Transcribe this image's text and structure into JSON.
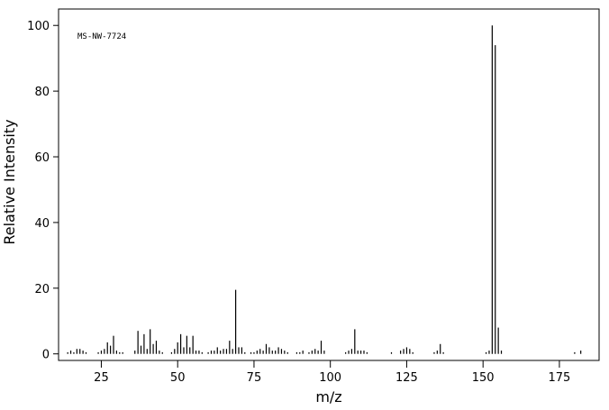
{
  "chart_data": {
    "type": "bar",
    "annotation": "MS-NW-7724",
    "x_label": "m/z",
    "y_label": "Relative Intensity",
    "color": "#000000",
    "x": [
      14,
      15,
      16,
      17,
      18,
      19,
      20,
      24,
      25,
      26,
      27,
      28,
      29,
      30,
      31,
      32,
      36,
      37,
      38,
      39,
      40,
      41,
      42,
      43,
      44,
      45,
      48,
      49,
      50,
      51,
      52,
      53,
      54,
      55,
      56,
      57,
      58,
      60,
      61,
      62,
      63,
      64,
      65,
      66,
      67,
      68,
      69,
      70,
      71,
      72,
      74,
      75,
      76,
      77,
      78,
      79,
      80,
      81,
      82,
      83,
      84,
      85,
      86,
      89,
      90,
      91,
      93,
      94,
      95,
      96,
      97,
      98,
      105,
      106,
      107,
      108,
      109,
      110,
      111,
      112,
      120,
      123,
      124,
      125,
      126,
      127,
      134,
      135,
      136,
      137,
      151,
      152,
      153,
      154,
      155,
      156,
      180,
      182
    ],
    "values": [
      0.5,
      1,
      0.5,
      1.5,
      1.5,
      1,
      0.5,
      0.5,
      1,
      1.5,
      3.5,
      2.5,
      5.5,
      1,
      0.5,
      0.5,
      1,
      7,
      2.5,
      6,
      1.5,
      7.5,
      3,
      4,
      1,
      0.5,
      0.5,
      1.5,
      3.5,
      6,
      2,
      5.5,
      2,
      5.5,
      1,
      1,
      0.5,
      0.5,
      1,
      1,
      2,
      1,
      1.5,
      1.5,
      4,
      1.5,
      19.5,
      2,
      2,
      0.5,
      0.5,
      0.5,
      1,
      1.5,
      1,
      3,
      2,
      1,
      1,
      2,
      1.5,
      1,
      0.5,
      0.5,
      0.5,
      1,
      0.5,
      1,
      1.5,
      1,
      4,
      1,
      0.5,
      1,
      1.5,
      7.5,
      1,
      1,
      1,
      0.5,
      0.5,
      1,
      1.5,
      2,
      1.5,
      0.5,
      0.5,
      1,
      3,
      0.5,
      0.5,
      1,
      100,
      94,
      8,
      1,
      0.5,
      1
    ],
    "xlim": [
      11,
      188
    ],
    "ylim": [
      -2,
      105
    ],
    "xticks": [
      25,
      50,
      75,
      100,
      125,
      150,
      175
    ],
    "yticks": [
      0,
      20,
      40,
      60,
      80,
      100
    ]
  }
}
